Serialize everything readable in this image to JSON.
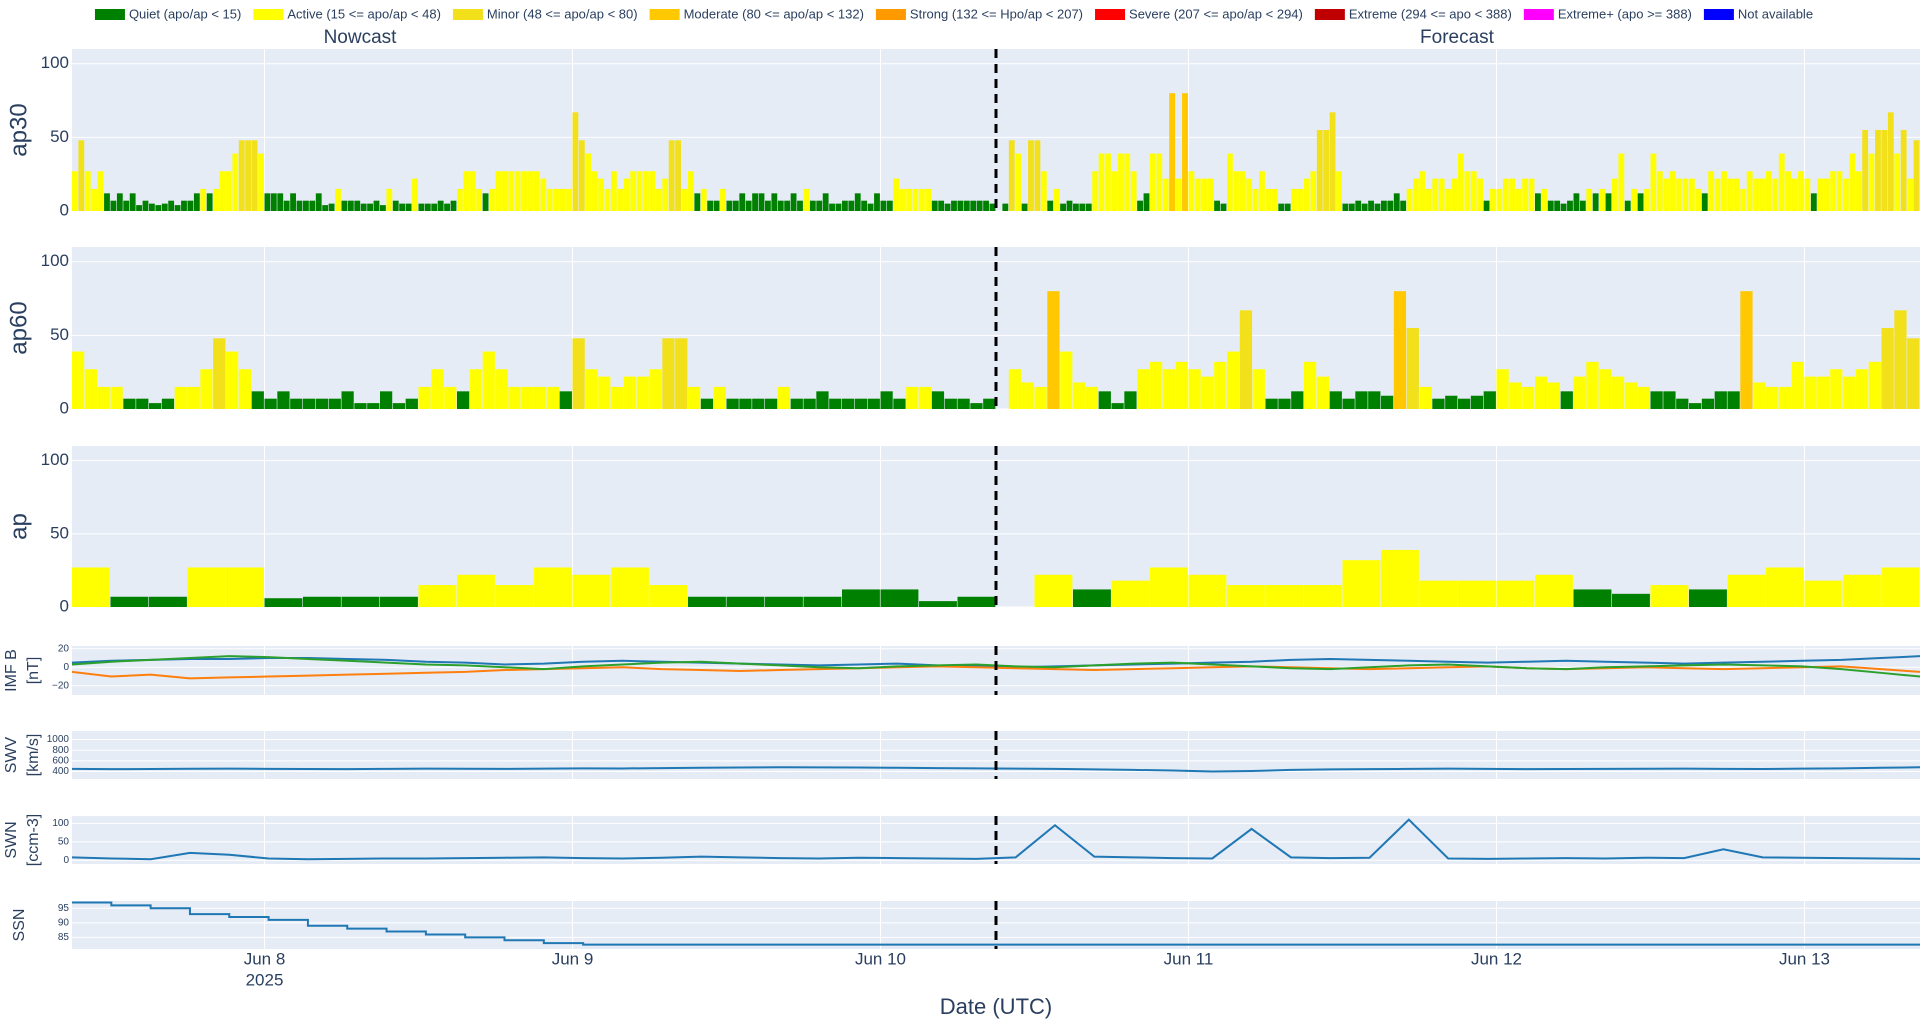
{
  "legend": [
    {
      "name": "Quiet (apo/ap < 15)",
      "color": "#008000",
      "max": 15
    },
    {
      "name": "Active (15 <= apo/ap < 48)",
      "color": "#ffff00",
      "max": 48
    },
    {
      "name": "Minor (48 <= apo/ap < 80)",
      "color": "#f2e01a",
      "max": 80
    },
    {
      "name": "Moderate (80 <= apo/ap < 132)",
      "color": "#ffc800",
      "max": 132
    },
    {
      "name": "Strong (132 <= Hpo/ap < 207)",
      "color": "#ff9900",
      "max": 207
    },
    {
      "name": "Severe (207 <= apo/ap < 294)",
      "color": "#ff0000",
      "max": 294
    },
    {
      "name": "Extreme (294 <= apo < 388)",
      "color": "#c00000",
      "max": 388
    },
    {
      "name": "Extreme+ (apo >= 388)",
      "color": "#ff00ff"
    },
    {
      "name": "Not available",
      "color": "#0000ff"
    }
  ],
  "subplot_titles": [
    "Nowcast",
    "Forecast"
  ],
  "xaxis": {
    "title": "Date (UTC)",
    "xlim": [
      "2025-06-07T09:00Z",
      "2025-06-13T09:00Z"
    ],
    "year": "2025",
    "xticks": [
      {
        "value": "2025-06-08T00:00Z",
        "label": "Jun 8"
      },
      {
        "value": "2025-06-09T00:00Z",
        "label": "Jun 9"
      },
      {
        "value": "2025-06-10T00:00Z",
        "label": "Jun 10"
      },
      {
        "value": "2025-06-11T00:00Z",
        "label": "Jun 11"
      },
      {
        "value": "2025-06-12T00:00Z",
        "label": "Jun 12"
      },
      {
        "value": "2025-06-13T00:00Z",
        "label": "Jun 13"
      }
    ],
    "divider": "2025-06-10T09:00Z"
  },
  "chart_data": [
    {
      "type": "bar",
      "ylabel": [
        "ap30"
      ],
      "ylim": [
        0,
        110
      ],
      "yticks": [
        0,
        50,
        100
      ],
      "values": [
        27,
        48,
        27,
        15,
        27,
        12,
        7,
        12,
        7,
        12,
        4,
        7,
        5,
        4,
        5,
        7,
        4,
        7,
        7,
        12,
        15,
        12,
        15,
        27,
        27,
        39,
        48,
        48,
        48,
        39,
        12,
        12,
        12,
        7,
        12,
        7,
        7,
        7,
        12,
        4,
        5,
        15,
        7,
        7,
        7,
        5,
        5,
        7,
        4,
        15,
        7,
        5,
        5,
        22,
        5,
        5,
        5,
        7,
        5,
        7,
        15,
        27,
        27,
        15,
        12,
        15,
        27,
        27,
        27,
        27,
        27,
        27,
        27,
        22,
        15,
        15,
        15,
        15,
        67,
        48,
        39,
        27,
        22,
        15,
        27,
        15,
        22,
        27,
        27,
        27,
        27,
        15,
        22,
        48,
        48,
        15,
        27,
        12,
        15,
        7,
        7,
        15,
        7,
        7,
        12,
        7,
        12,
        12,
        7,
        12,
        7,
        7,
        12,
        7,
        15,
        7,
        7,
        12,
        5,
        5,
        7,
        7,
        12,
        7,
        5,
        12,
        7,
        7,
        22,
        15,
        15,
        15,
        15,
        15,
        7,
        7,
        5,
        7,
        7,
        7,
        7,
        7,
        7,
        5,
        null,
        5,
        48,
        39,
        5,
        48,
        48,
        27,
        7,
        15,
        5,
        7,
        5,
        5,
        5,
        27,
        39,
        39,
        27,
        39,
        39,
        27,
        7,
        12,
        39,
        39,
        22,
        80,
        22,
        80,
        27,
        22,
        22,
        22,
        7,
        5,
        39,
        27,
        27,
        22,
        15,
        27,
        15,
        15,
        5,
        5,
        15,
        15,
        22,
        27,
        55,
        55,
        67,
        27,
        5,
        5,
        7,
        5,
        7,
        5,
        7,
        7,
        12,
        7,
        15,
        22,
        27,
        15,
        22,
        22,
        15,
        22,
        39,
        27,
        27,
        22,
        7,
        15,
        15,
        22,
        22,
        15,
        22,
        22,
        12,
        15,
        7,
        7,
        5,
        7,
        12,
        7,
        15,
        12,
        15,
        12,
        22,
        39,
        7,
        15,
        12,
        15,
        39,
        27,
        22,
        27,
        22,
        22,
        22,
        15,
        12,
        27,
        22,
        27,
        22,
        22,
        15,
        27,
        22,
        22,
        27,
        22,
        39,
        27,
        22,
        27,
        22,
        12,
        22,
        22,
        27,
        27,
        22,
        39,
        27,
        55,
        39,
        55,
        55,
        67,
        39,
        55,
        22,
        48
      ]
    },
    {
      "type": "bar",
      "ylabel": [
        "ap60"
      ],
      "ylim": [
        0,
        110
      ],
      "yticks": [
        0,
        50,
        100
      ],
      "values": [
        39,
        27,
        15,
        15,
        7,
        7,
        4,
        7,
        15,
        15,
        27,
        48,
        39,
        27,
        12,
        7,
        12,
        7,
        7,
        7,
        7,
        12,
        4,
        4,
        12,
        4,
        7,
        15,
        27,
        15,
        12,
        27,
        39,
        27,
        15,
        15,
        15,
        15,
        12,
        48,
        27,
        22,
        15,
        22,
        22,
        27,
        48,
        48,
        15,
        7,
        15,
        7,
        7,
        7,
        7,
        15,
        7,
        7,
        12,
        7,
        7,
        7,
        7,
        12,
        7,
        15,
        15,
        12,
        7,
        7,
        4,
        7,
        null,
        27,
        18,
        15,
        80,
        39,
        18,
        15,
        12,
        4,
        12,
        27,
        32,
        27,
        32,
        27,
        22,
        32,
        39,
        67,
        27,
        7,
        7,
        12,
        32,
        22,
        12,
        7,
        12,
        12,
        9,
        80,
        55,
        15,
        7,
        9,
        7,
        9,
        12,
        27,
        18,
        15,
        22,
        18,
        12,
        22,
        32,
        27,
        22,
        18,
        15,
        12,
        12,
        7,
        4,
        7,
        12,
        12,
        80,
        18,
        15,
        15,
        32,
        22,
        22,
        27,
        22,
        27,
        32,
        55,
        67,
        48
      ]
    },
    {
      "type": "bar",
      "ylabel": [
        "ap"
      ],
      "ylim": [
        0,
        110
      ],
      "yticks": [
        0,
        50,
        100
      ],
      "values": [
        27,
        7,
        7,
        27,
        27,
        6,
        7,
        7,
        7,
        15,
        22,
        15,
        27,
        22,
        27,
        15,
        7,
        7,
        7,
        7,
        12,
        12,
        4,
        7,
        null,
        22,
        12,
        18,
        27,
        22,
        15,
        15,
        15,
        32,
        39,
        18,
        18,
        18,
        22,
        12,
        9,
        15,
        12,
        22,
        27,
        18,
        22,
        27
      ]
    },
    {
      "type": "line",
      "ylabel": [
        "IMF B",
        "[nT]"
      ],
      "ylim": [
        -30,
        23
      ],
      "yticks": [
        {
          "value": -20,
          "label": "−20"
        },
        0,
        20
      ],
      "series": [
        {
          "color": "#1f77b4",
          "values": [
            5,
            7,
            8,
            9,
            9,
            10,
            10,
            9,
            8,
            6,
            5,
            3,
            4,
            6,
            7,
            6,
            5,
            4,
            3,
            2,
            3,
            4,
            2,
            1,
            0,
            1,
            2,
            3,
            4,
            5,
            6,
            8,
            9,
            8,
            7,
            6,
            5,
            6,
            7,
            6,
            5,
            4,
            5,
            6,
            7,
            8,
            10,
            12
          ]
        },
        {
          "color": "#ff7f0e",
          "values": [
            -5,
            -10,
            -8,
            -12,
            -11,
            -10,
            -9,
            -8,
            -7,
            -6,
            -5,
            -3,
            -2,
            -1,
            0,
            -2,
            -3,
            -4,
            -3,
            -2,
            -1,
            0,
            1,
            0,
            -1,
            -2,
            -3,
            -2,
            -1,
            0,
            1,
            0,
            -1,
            -2,
            -1,
            0,
            1,
            -1,
            -2,
            -1,
            0,
            -1,
            -2,
            -1,
            0,
            1,
            -2,
            -5
          ]
        },
        {
          "color": "#2ca02c",
          "values": [
            3,
            6,
            8,
            10,
            12,
            11,
            9,
            7,
            5,
            3,
            2,
            0,
            -2,
            1,
            3,
            5,
            6,
            4,
            2,
            0,
            -1,
            1,
            2,
            3,
            1,
            0,
            2,
            4,
            5,
            3,
            1,
            -1,
            -2,
            0,
            2,
            3,
            1,
            -1,
            -2,
            0,
            1,
            2,
            3,
            2,
            1,
            -2,
            -6,
            -10
          ]
        }
      ]
    },
    {
      "type": "line",
      "ylabel": [
        "SWV",
        "[km/s]"
      ],
      "ylim": [
        260,
        1160
      ],
      "yticks": [
        400,
        600,
        800,
        1000
      ],
      "series": [
        {
          "color": "#1f77b4",
          "values": [
            450,
            445,
            448,
            452,
            455,
            450,
            448,
            446,
            450,
            455,
            452,
            450,
            455,
            460,
            458,
            465,
            470,
            475,
            480,
            478,
            475,
            470,
            465,
            460,
            455,
            450,
            440,
            430,
            420,
            400,
            410,
            430,
            440,
            445,
            450,
            455,
            450,
            445,
            448,
            450,
            452,
            455,
            450,
            448,
            455,
            460,
            470,
            480
          ]
        }
      ]
    },
    {
      "type": "line",
      "ylabel": [
        "SWN",
        "[ccm-3]"
      ],
      "ylim": [
        -10,
        120
      ],
      "yticks": [
        0,
        50,
        100
      ],
      "series": [
        {
          "color": "#1f77b4",
          "values": [
            8,
            5,
            3,
            20,
            15,
            5,
            3,
            4,
            5,
            5,
            6,
            7,
            8,
            6,
            5,
            7,
            10,
            8,
            6,
            5,
            7,
            6,
            5,
            4,
            8,
            95,
            10,
            8,
            6,
            5,
            85,
            8,
            6,
            7,
            110,
            5,
            4,
            5,
            6,
            5,
            7,
            6,
            30,
            8,
            7,
            6,
            5,
            4
          ]
        }
      ]
    },
    {
      "type": "line",
      "line_shape": "hv",
      "ylabel": [
        "SSN"
      ],
      "ylim": [
        81,
        97.5
      ],
      "yticks": [
        85,
        90,
        95
      ],
      "series": [
        {
          "color": "#1f77b4",
          "values": [
            97,
            96,
            95,
            93,
            92,
            91,
            89,
            88,
            87,
            86,
            85,
            84,
            83,
            82.5,
            82.5,
            82.5,
            82.5,
            82.5,
            82.5,
            82.5,
            82.5,
            82.5,
            82.5,
            82.5,
            82.5,
            82.5,
            82.5,
            82.5,
            82.5,
            82.5,
            82.5,
            82.5,
            82.5,
            82.5,
            82.5,
            82.5,
            82.5,
            82.5,
            82.5,
            82.5,
            82.5,
            82.5,
            82.5,
            82.5,
            82.5,
            82.5,
            82.5,
            82.5
          ]
        }
      ]
    }
  ]
}
